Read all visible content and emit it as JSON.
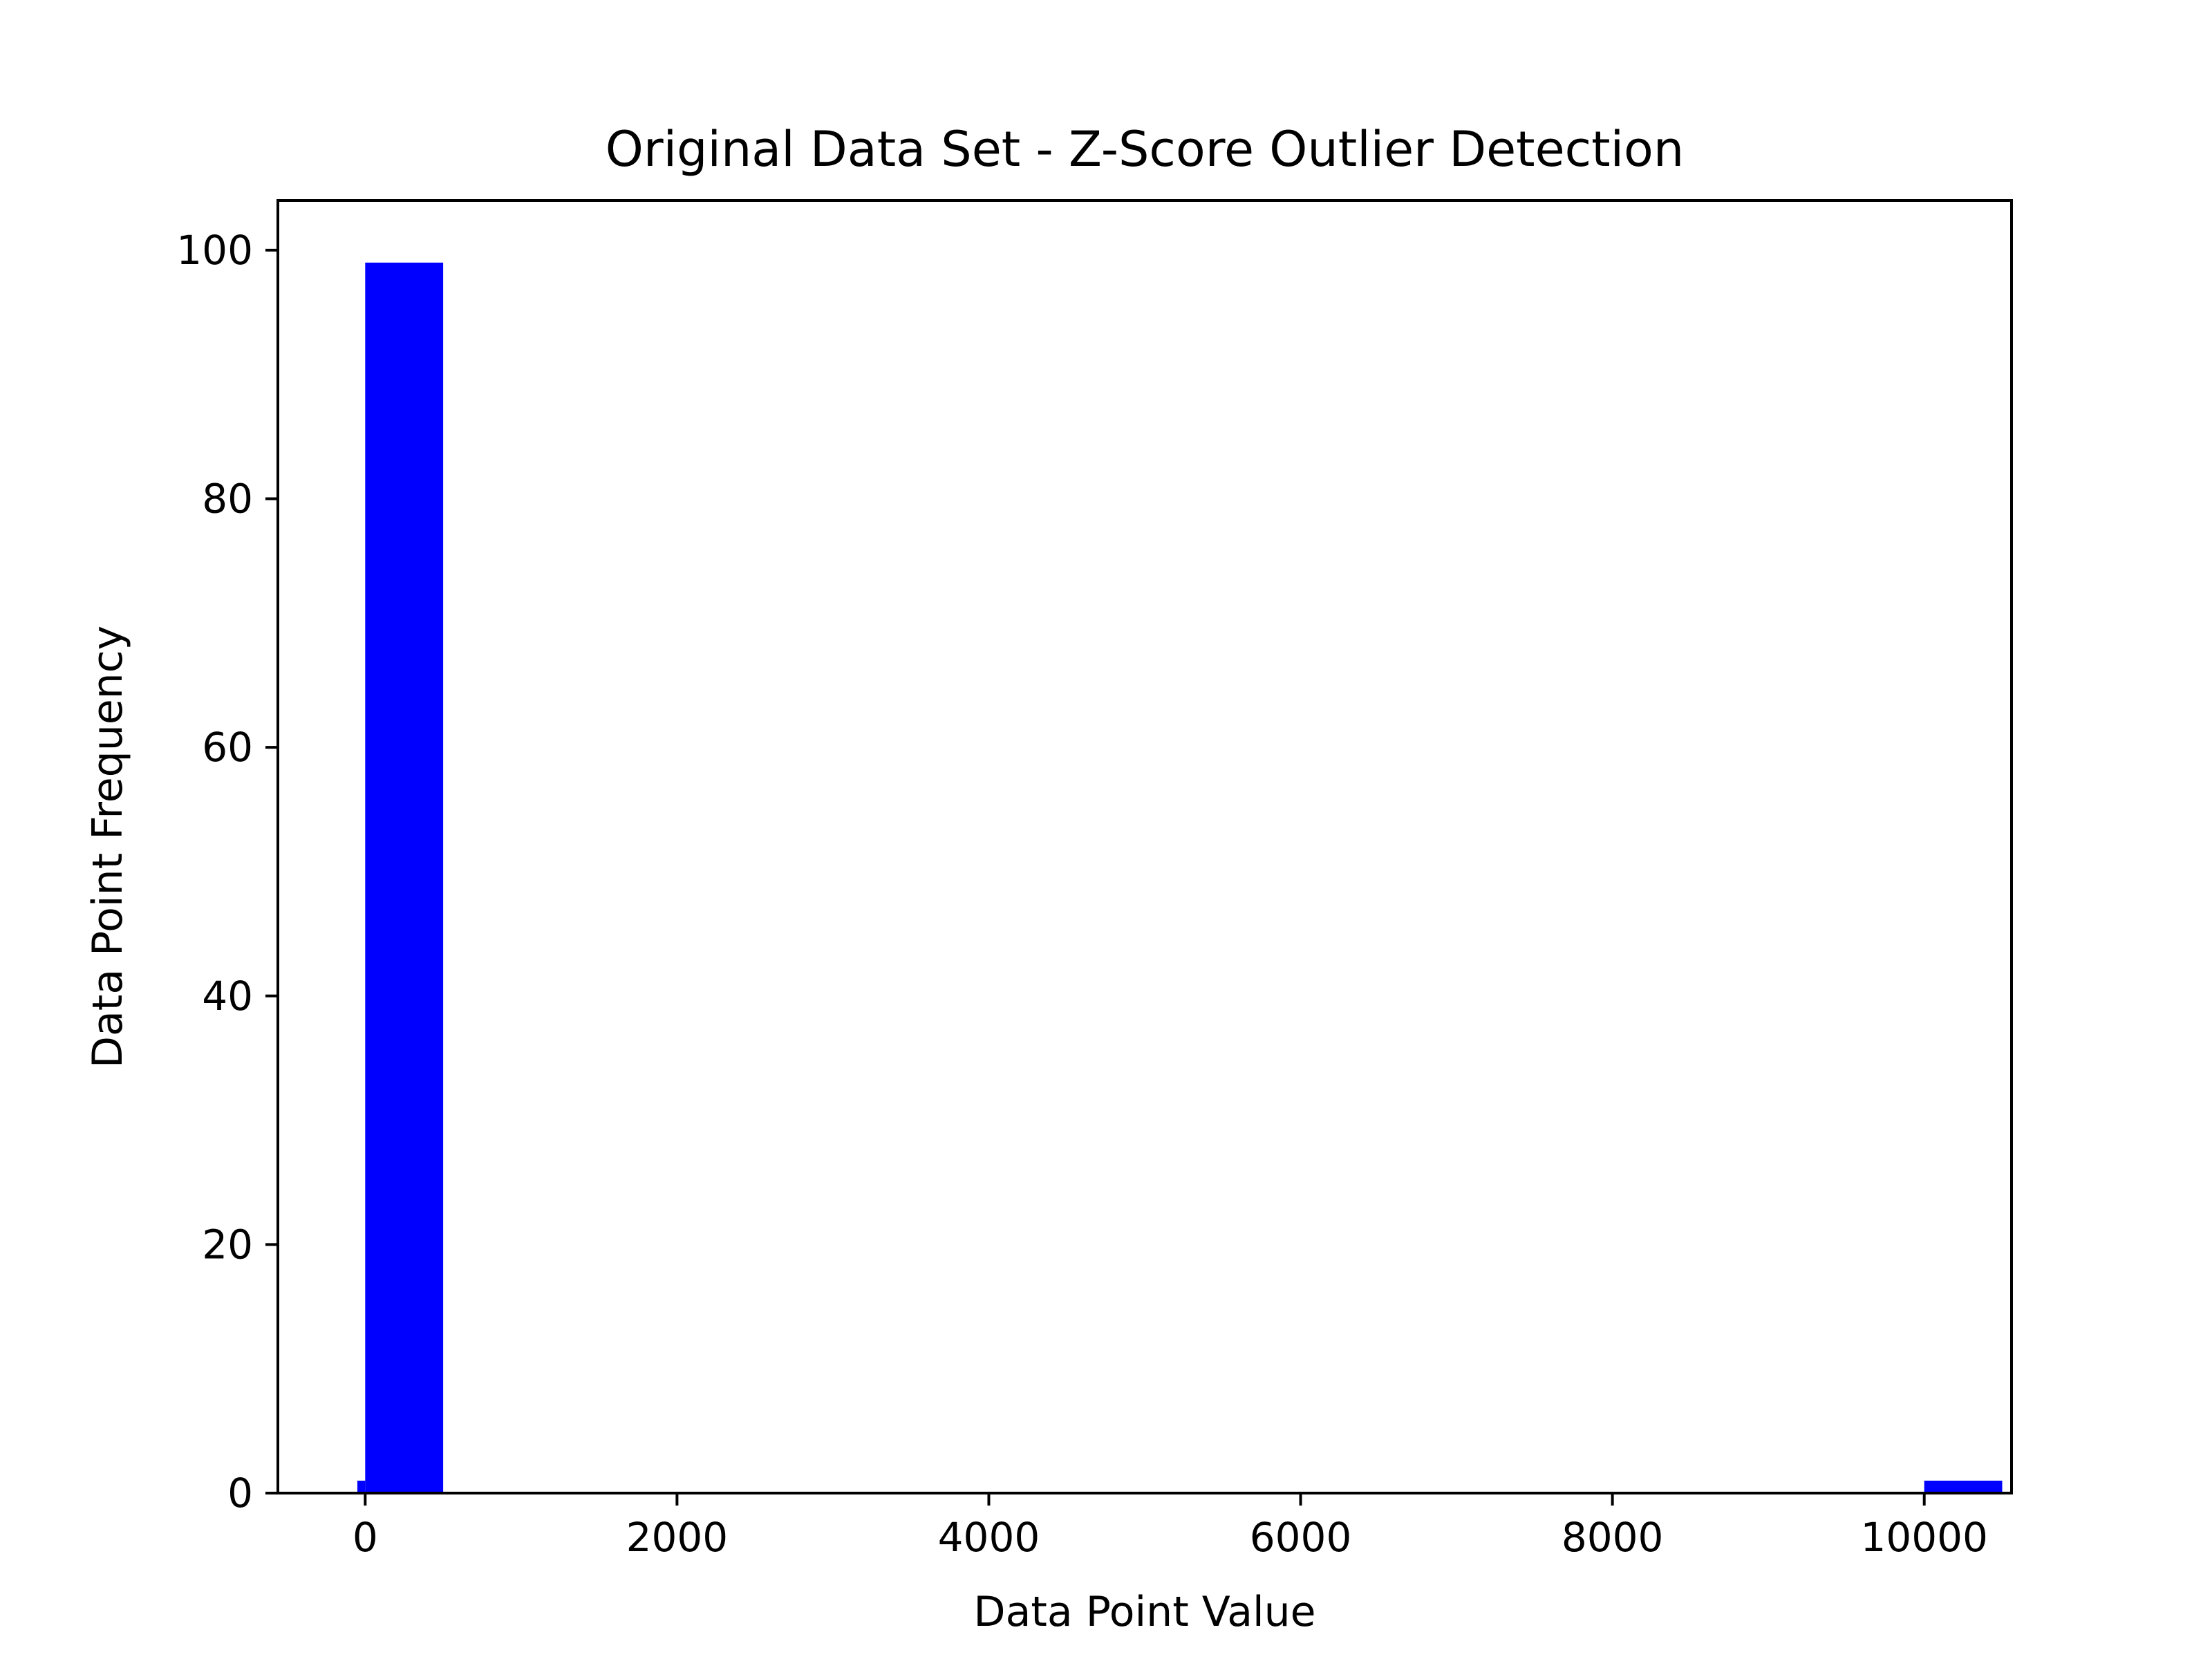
{
  "chart_data": {
    "type": "bar",
    "title": "Original Data Set - Z-Score Outlier Detection",
    "xlabel": "Data Point Value",
    "ylabel": "Data Point Frequency",
    "xlim": [
      -560,
      10560
    ],
    "ylim": [
      0,
      104
    ],
    "xticks": [
      0,
      2000,
      4000,
      6000,
      8000,
      10000
    ],
    "xtick_labels": [
      "0",
      "2000",
      "4000",
      "6000",
      "8000",
      "10000"
    ],
    "yticks": [
      0,
      20,
      40,
      60,
      80,
      100
    ],
    "ytick_labels": [
      "0",
      "20",
      "40",
      "60",
      "80",
      "100"
    ],
    "bars": [
      {
        "series": "bins",
        "x0": -50,
        "x1": 0,
        "value": 1
      },
      {
        "series": "bins",
        "x0": 0,
        "x1": 500,
        "value": 99
      },
      {
        "series": "bins",
        "x0": 10000,
        "x1": 10500,
        "value": 1
      }
    ],
    "colors": {
      "bars": "#0000ff",
      "axes": "#000000"
    },
    "grid": false
  }
}
